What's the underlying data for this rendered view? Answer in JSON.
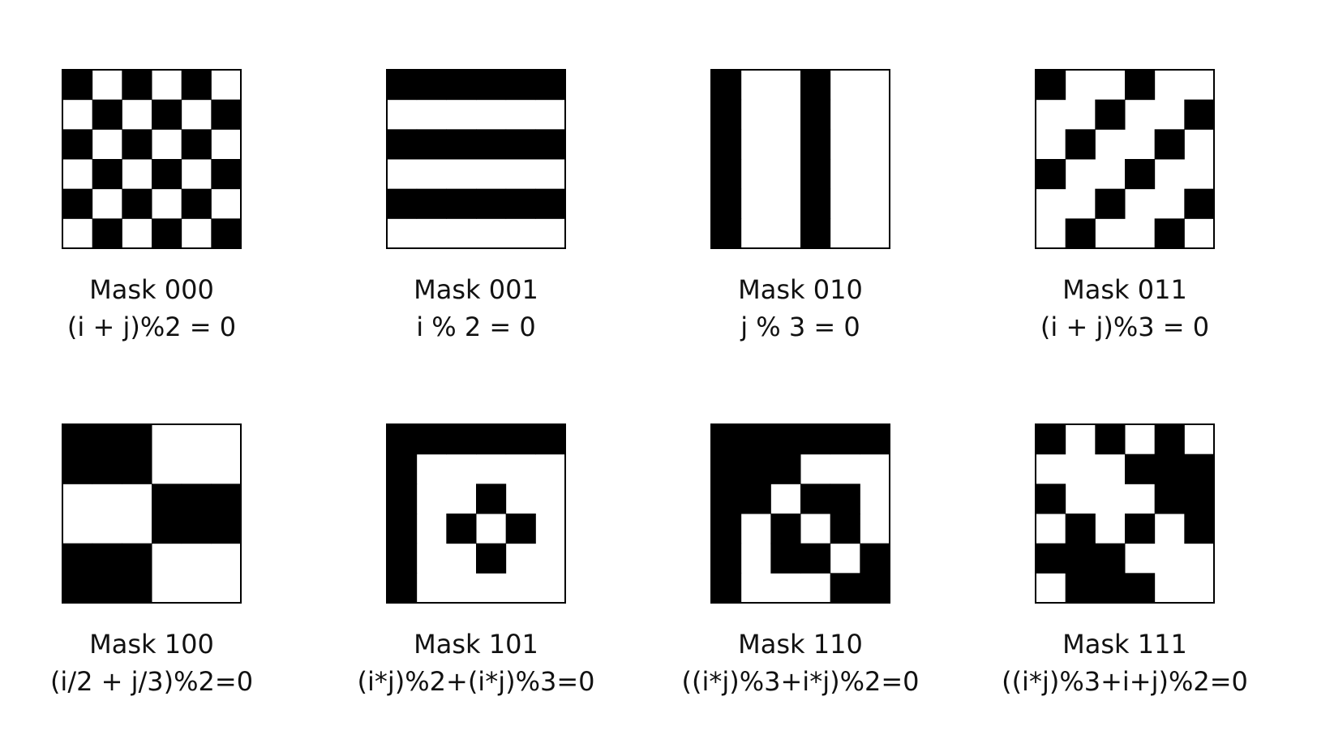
{
  "masks": [
    {
      "label": "Mask 000",
      "formula": "(i + j)%2 = 0",
      "pattern": [
        "101010",
        "010101",
        "101010",
        "010101",
        "101010",
        "010101"
      ]
    },
    {
      "label": "Mask 001",
      "formula": "i % 2 = 0",
      "pattern": [
        "111111",
        "000000",
        "111111",
        "000000",
        "111111",
        "000000"
      ]
    },
    {
      "label": "Mask 010",
      "formula": "j % 3 = 0",
      "pattern": [
        "100100",
        "100100",
        "100100",
        "100100",
        "100100",
        "100100"
      ]
    },
    {
      "label": "Mask 011",
      "formula": "(i + j)%3 = 0",
      "pattern": [
        "100100",
        "001001",
        "010010",
        "100100",
        "001001",
        "010010"
      ]
    },
    {
      "label": "Mask 100",
      "formula": "(i/2 + j/3)%2=0",
      "pattern": [
        "111000",
        "111000",
        "000111",
        "000111",
        "111000",
        "111000"
      ]
    },
    {
      "label": "Mask 101",
      "formula": "(i*j)%2+(i*j)%3=0",
      "pattern": [
        "111111",
        "100000",
        "100100",
        "101010",
        "100100",
        "100000"
      ]
    },
    {
      "label": "Mask 110",
      "formula": "((i*j)%3+i*j)%2=0",
      "pattern": [
        "111111",
        "111000",
        "110110",
        "101010",
        "101101",
        "100011"
      ]
    },
    {
      "label": "Mask 111",
      "formula": "((i*j)%3+i+j)%2=0",
      "pattern": [
        "101010",
        "000111",
        "100011",
        "010101",
        "111000",
        "011100"
      ]
    }
  ],
  "colors": {
    "dark": "#000000",
    "light": "#ffffff",
    "border": "#000000"
  }
}
